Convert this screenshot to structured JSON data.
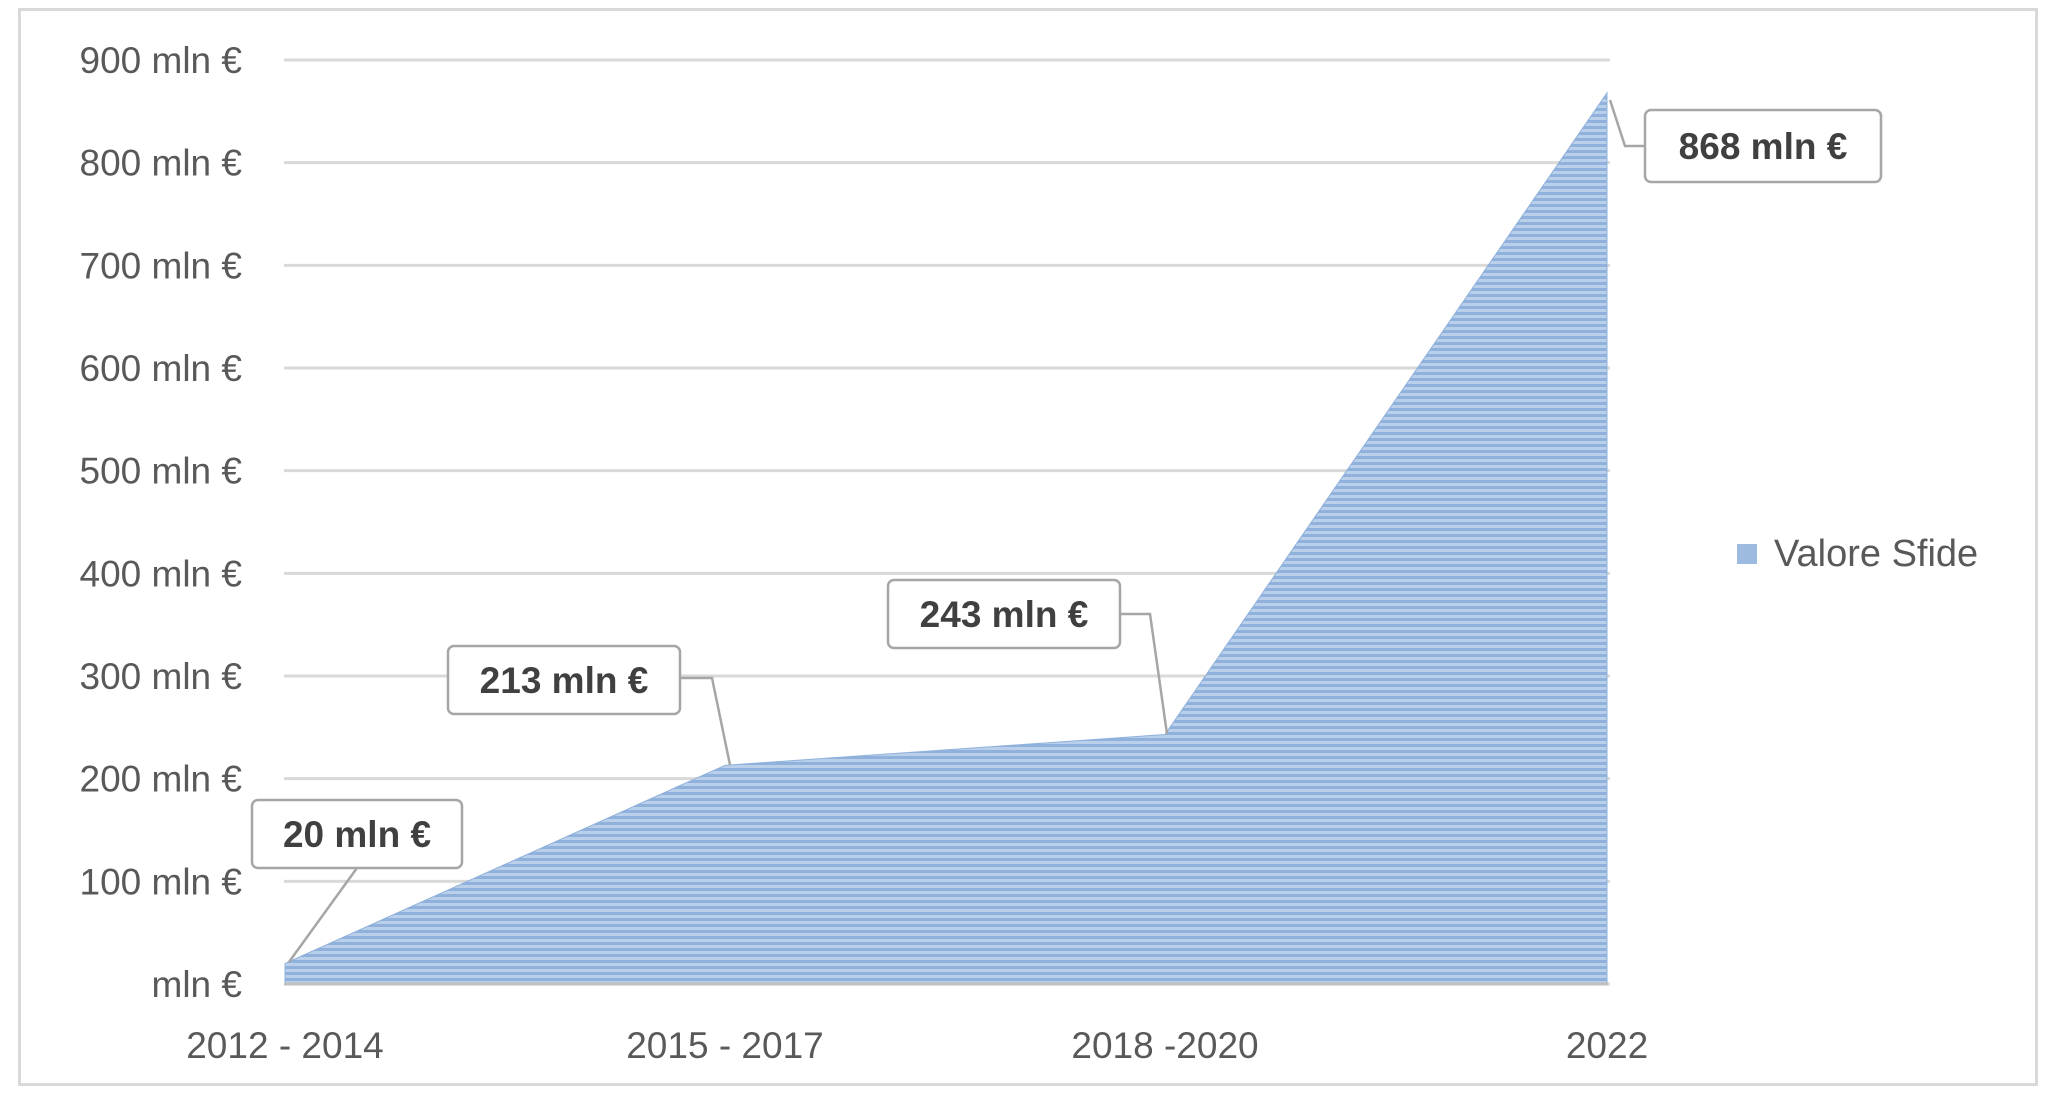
{
  "chart_data": {
    "type": "area",
    "categories": [
      "2012 - 2014",
      "2015 - 2017",
      "2018 -2020",
      "2022"
    ],
    "series": [
      {
        "name": "Valore Sfide",
        "values": [
          20,
          213,
          243,
          868
        ],
        "color": "#9dbbe0"
      }
    ],
    "data_labels": [
      "20 mln €",
      "213 mln €",
      "243 mln €",
      "868 mln €"
    ],
    "y_ticks": [
      0,
      100,
      200,
      300,
      400,
      500,
      600,
      700,
      800,
      900
    ],
    "y_tick_labels": [
      "mln €",
      "100 mln €",
      "200 mln €",
      "300 mln €",
      "400 mln €",
      "500 mln €",
      "600 mln €",
      "700 mln €",
      "800 mln €",
      "900 mln €"
    ],
    "ylim": [
      0,
      900
    ],
    "grid": true,
    "legend_position": "right",
    "title": "",
    "xlabel": "",
    "ylabel": ""
  }
}
